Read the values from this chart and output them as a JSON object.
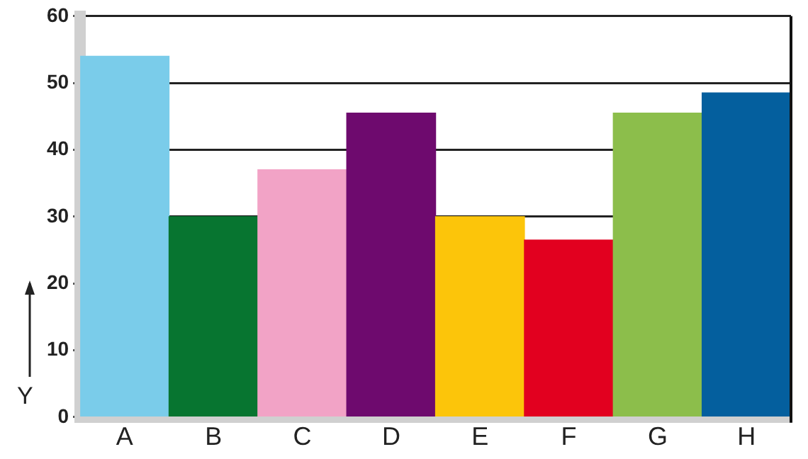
{
  "chart_data": {
    "type": "bar",
    "ylabel": "Y",
    "categories": [
      "A",
      "B",
      "C",
      "D",
      "E",
      "F",
      "G",
      "H"
    ],
    "values": [
      54,
      30,
      37,
      45.5,
      30,
      26.5,
      45.5,
      48.5
    ],
    "colors": [
      "#7accea",
      "#077530",
      "#f2a3c6",
      "#6e0a6e",
      "#fcc50a",
      "#e2001f",
      "#8cbe4b",
      "#045f9e"
    ],
    "ylim": [
      0,
      60
    ],
    "yticks": [
      0,
      10,
      20,
      30,
      40,
      50,
      60
    ],
    "grid": "y",
    "legend": false
  }
}
